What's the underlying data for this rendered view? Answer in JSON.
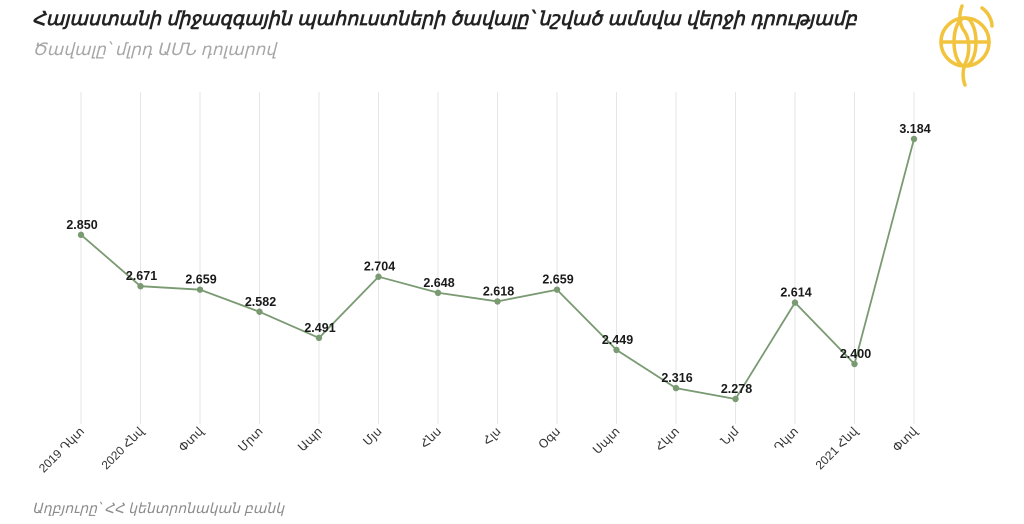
{
  "header": {
    "title": "Հայաստանի միջազգային պահուստների ծավալը՝ նշված ամսվա վերջի դրությամբ",
    "subtitle": "Ծավալը՝ մլրդ ԱՄՆ դոլարով"
  },
  "footer": {
    "source": "Աղբյուրը՝ ՀՀ կենտրոնական բանկ"
  },
  "brand": {
    "logo_icon": "globe-logo-icon",
    "logo_color": "#f2c43d"
  },
  "colors": {
    "series": "#7a9a72",
    "grid": "#e6e6e6"
  },
  "chart_data": {
    "type": "line",
    "title": "Հայաստանի միջազգային պահուստների ծավալը՝ նշված ամսվա վերջի դրությամբ",
    "subtitle": "Ծավալը՝ մլրդ ԱՄՆ դոլարով",
    "xlabel": "",
    "ylabel": "",
    "categories": [
      "2019 Դկտ",
      "2020 Հնվ",
      "Փտվ",
      "Մրտ",
      "Ապր",
      "Մյս",
      "Հնս",
      "Հլս",
      "Օգս",
      "Սպտ",
      "Հկտ",
      "Նյմ",
      "Դկտ",
      "2021 Հնվ",
      "Փտվ"
    ],
    "values": [
      2.85,
      2.671,
      2.659,
      2.582,
      2.491,
      2.704,
      2.648,
      2.618,
      2.659,
      2.449,
      2.316,
      2.278,
      2.614,
      2.4,
      3.184
    ],
    "value_labels": [
      "2.850",
      "2.671",
      "2.659",
      "2.582",
      "2.491",
      "2.704",
      "2.648",
      "2.618",
      "2.659",
      "2.449",
      "2.316",
      "2.278",
      "2.614",
      "2.400",
      "3.184"
    ],
    "ylim": [
      2.0,
      3.3
    ],
    "grid": "vertical",
    "legend": "none"
  }
}
